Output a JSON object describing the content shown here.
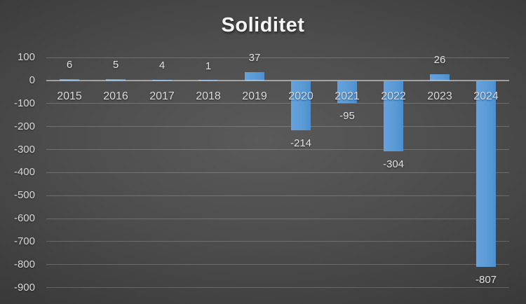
{
  "chart_data": {
    "type": "bar",
    "title": "Soliditet",
    "categories": [
      "2015",
      "2016",
      "2017",
      "2018",
      "2019",
      "2020",
      "2021",
      "2022",
      "2023",
      "2024"
    ],
    "values": [
      6,
      5,
      4,
      1,
      37,
      -214,
      -95,
      -304,
      26,
      -807
    ],
    "data_labels": [
      "6",
      "5",
      "4",
      "1",
      "37",
      "-214",
      "-95",
      "-304",
      "26",
      "-807"
    ],
    "yticks": [
      100,
      0,
      -100,
      -200,
      -300,
      -400,
      -500,
      -600,
      -700,
      -800,
      -900
    ],
    "ylim": [
      -900,
      100
    ],
    "xlabel": "",
    "ylabel": "",
    "grid": true,
    "legend": "none",
    "colors": {
      "bar": "#5B9BD5",
      "bar_gradient_light": "#66A2DD",
      "bar_gradient_dark": "#4E8FD0",
      "title_text": "#F5F5F5",
      "tick_text": "#DADADA",
      "category_text": "#DADADA",
      "data_label_text": "#E2E2E2",
      "background_center": "#5A5A5A",
      "background_edge": "#222222"
    }
  }
}
